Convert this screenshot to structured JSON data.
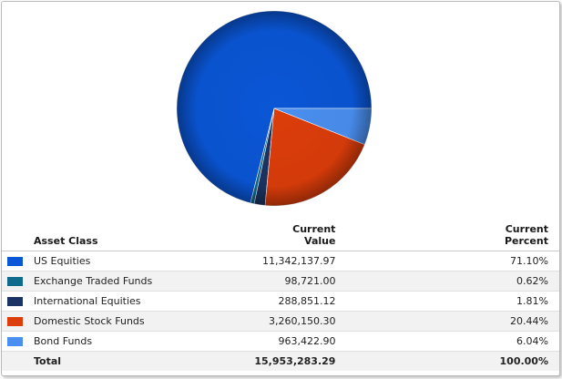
{
  "chart_data": {
    "type": "pie",
    "columns": {
      "asset_class": "Asset Class",
      "current_value": [
        "Current",
        "Value"
      ],
      "current_percent": [
        "Current",
        "Percent"
      ]
    },
    "slices": [
      {
        "name": "US Equities",
        "value": "11,342,137.97",
        "percent_label": "71.10%",
        "percent": 71.1,
        "color": "#0a56d6"
      },
      {
        "name": "Exchange Traded Funds",
        "value": "98,721.00",
        "percent_label": "0.62%",
        "percent": 0.62,
        "color": "#0f6a8c"
      },
      {
        "name": "International Equities",
        "value": "288,851.12",
        "percent_label": "1.81%",
        "percent": 1.81,
        "color": "#1b3464"
      },
      {
        "name": "Domestic Stock Funds",
        "value": "3,260,150.30",
        "percent_label": "20.44%",
        "percent": 20.44,
        "color": "#dc3d0a"
      },
      {
        "name": "Bond Funds",
        "value": "963,422.90",
        "percent_label": "6.04%",
        "percent": 6.04,
        "color": "#4a8ff0"
      }
    ],
    "total": {
      "label": "Total",
      "value": "15,953,283.29",
      "percent_label": "100.00%"
    }
  }
}
